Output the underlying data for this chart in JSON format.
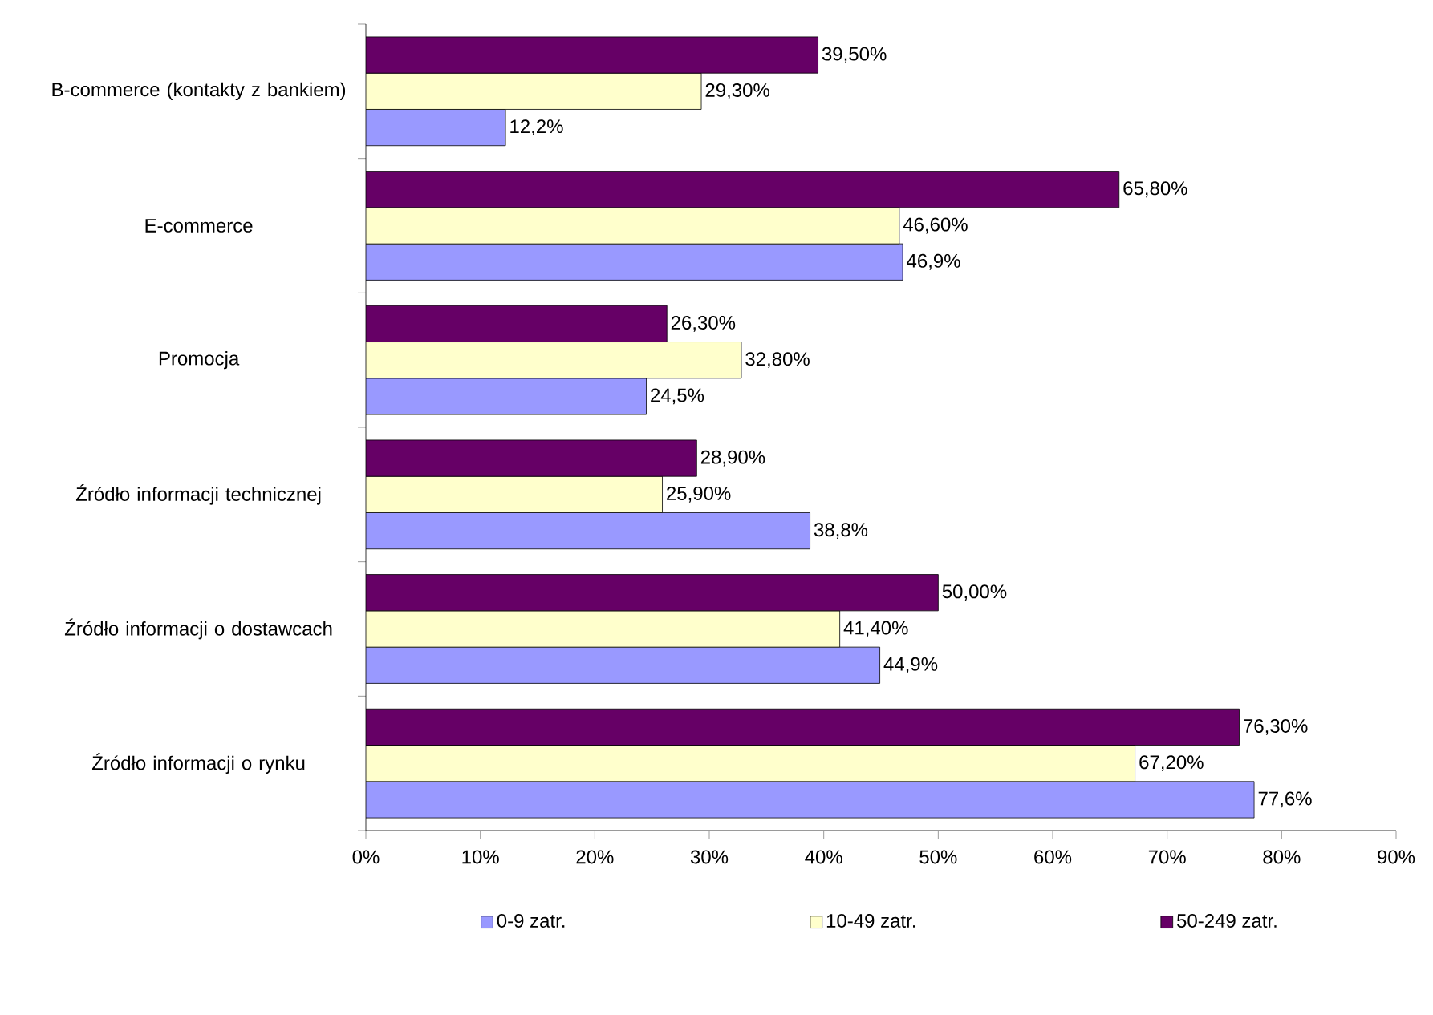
{
  "chart_data": {
    "type": "bar",
    "orientation": "horizontal",
    "categories": [
      "B-commerce (kontakty z bankiem)",
      "E-commerce",
      "Promocja",
      "Źródło informacji technicznej",
      "Źródło informacji o dostawcach",
      "Źródło informacji o rynku"
    ],
    "series": [
      {
        "name": "0-9 zatr.",
        "color": "#9999ff",
        "values": [
          12.2,
          46.9,
          24.5,
          38.8,
          44.9,
          77.6
        ],
        "value_labels": [
          "12,2%",
          "46,9%",
          "24,5%",
          "38,8%",
          "44,9%",
          "77,6%"
        ]
      },
      {
        "name": "10-49 zatr.",
        "color": "#ffffcc",
        "values": [
          29.3,
          46.6,
          32.8,
          25.9,
          41.4,
          67.2
        ],
        "value_labels": [
          "29,30%",
          "46,60%",
          "32,80%",
          "25,90%",
          "41,40%",
          "67,20%"
        ]
      },
      {
        "name": "50-249 zatr.",
        "color": "#660066",
        "values": [
          39.5,
          65.8,
          26.3,
          28.9,
          50.0,
          76.3
        ],
        "value_labels": [
          "39,50%",
          "65,80%",
          "26,30%",
          "28,90%",
          "50,00%",
          "76,30%"
        ]
      }
    ],
    "xlim": [
      0,
      90
    ],
    "xticks": [
      {
        "value": 0,
        "label": "0%"
      },
      {
        "value": 10,
        "label": "10%"
      },
      {
        "value": 20,
        "label": "20%"
      },
      {
        "value": 30,
        "label": "30%"
      },
      {
        "value": 40,
        "label": "40%"
      },
      {
        "value": 50,
        "label": "50%"
      },
      {
        "value": 60,
        "label": "60%"
      },
      {
        "value": 70,
        "label": "70%"
      },
      {
        "value": 80,
        "label": "80%"
      },
      {
        "value": 90,
        "label": "90%"
      }
    ],
    "legend": "bottom"
  }
}
